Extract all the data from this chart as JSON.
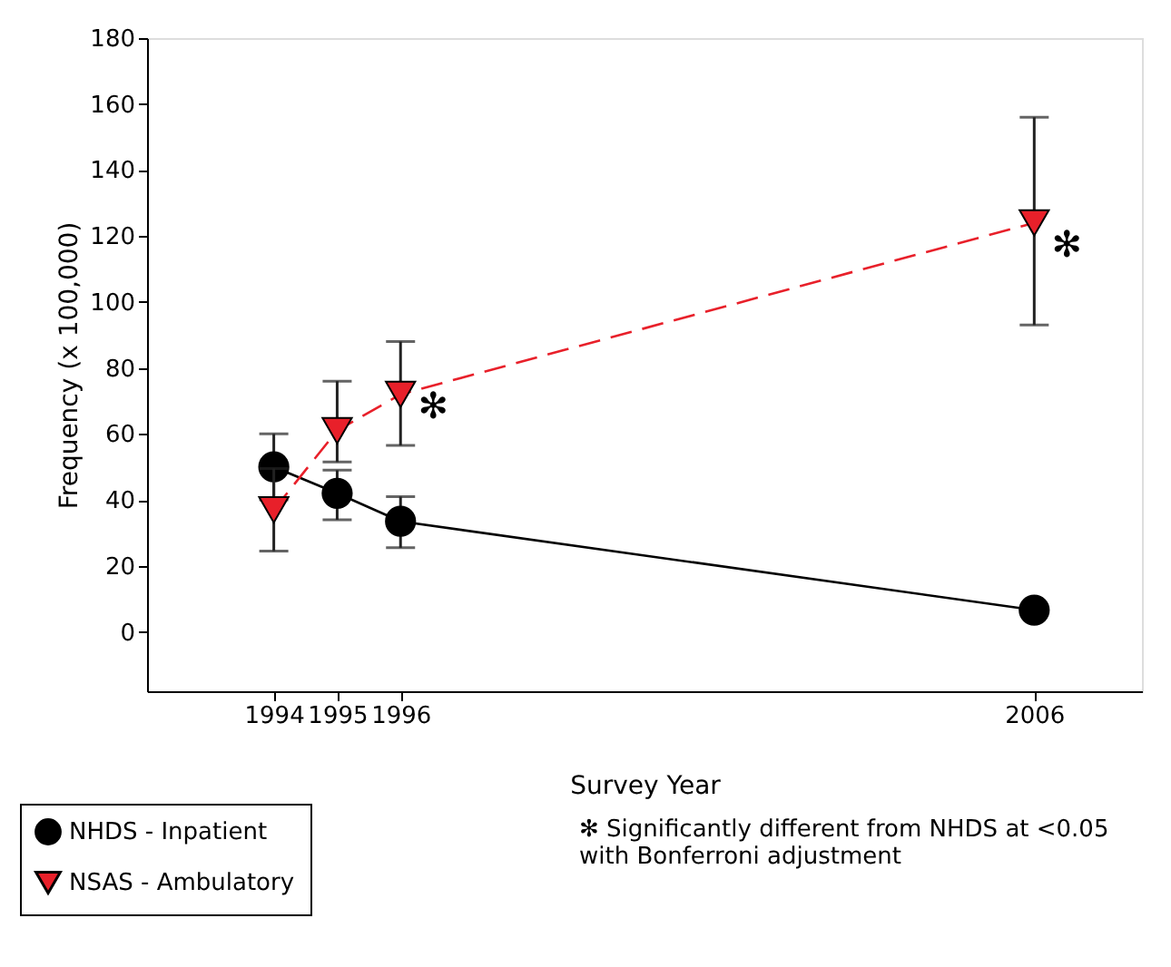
{
  "chart_data": {
    "type": "line",
    "xlabel": "Survey Year",
    "ylabel": "Frequency (x 100,000)",
    "x": [
      1994,
      1995,
      1996,
      2006
    ],
    "series": [
      {
        "name": "NHDS - Inpatient",
        "color": "#000000",
        "marker": "circle",
        "line_style": "solid",
        "values": [
          50,
          42,
          33.5,
          6.6
        ],
        "errors": [
          [
            40,
            60
          ],
          [
            34,
            49
          ],
          [
            25.5,
            41
          ],
          null
        ]
      },
      {
        "name": "NSAS - Ambulatory",
        "color": "#e8202a",
        "marker": "triangle",
        "line_style": "dashed",
        "values": [
          37,
          61,
          72,
          124
        ],
        "errors": [
          [
            24.5,
            49.5
          ],
          [
            51.5,
            76
          ],
          [
            56.5,
            88
          ],
          [
            93,
            156
          ]
        ]
      }
    ],
    "xlim": [
      1992,
      2007.7
    ],
    "xticks": [
      1994,
      1995,
      1996,
      2006
    ],
    "ylim": [
      -18,
      180
    ],
    "yticks": [
      0,
      20,
      40,
      60,
      80,
      100,
      120,
      140,
      160,
      180
    ],
    "grid": false,
    "legend": "bottom left",
    "annotations": [
      {
        "text": "✻",
        "x": 1996,
        "y": 68
      },
      {
        "text": "✻",
        "x": 2006,
        "y": 117
      },
      "✻ Significantly different from NHDS at <0.05\nwith Bonferroni adjustment"
    ]
  }
}
